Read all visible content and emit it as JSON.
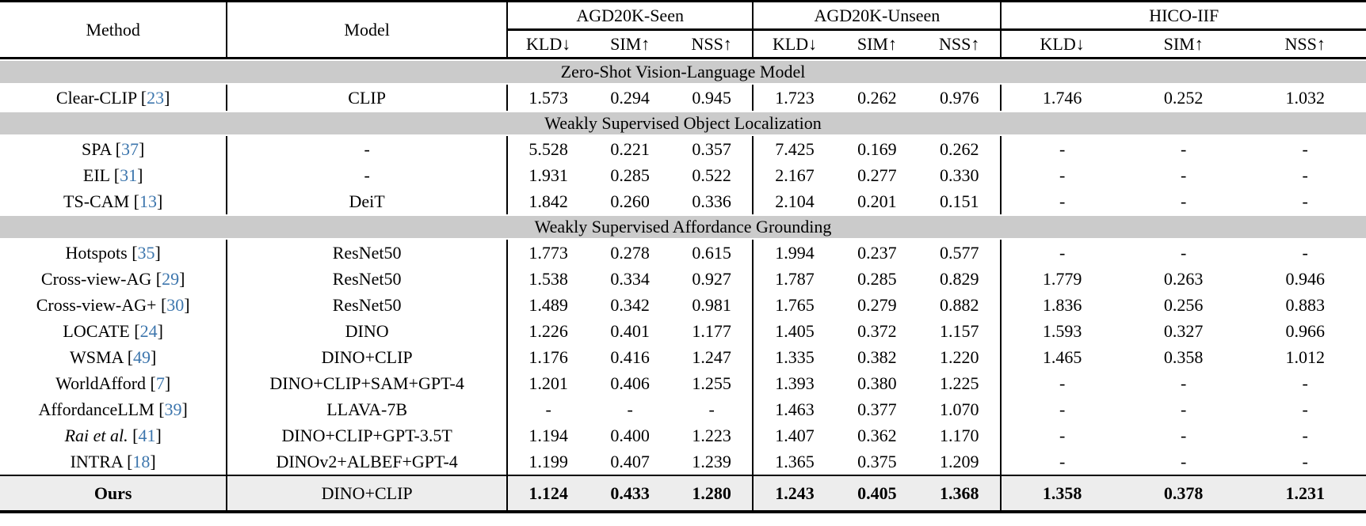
{
  "table": {
    "cite_open": "[",
    "cite_close": "]",
    "accent_color": "#3d76ad",
    "band_color": "#cbcbcb",
    "ours_row_color": "#ededed",
    "header": {
      "method": "Method",
      "model": "Model"
    },
    "groups": [
      {
        "label": "AGD20K-Seen",
        "metrics": [
          "KLD↓",
          "SIM↑",
          "NSS↑"
        ]
      },
      {
        "label": "AGD20K-Unseen",
        "metrics": [
          "KLD↓",
          "SIM↑",
          "NSS↑"
        ]
      },
      {
        "label": "HICO-IIF",
        "metrics": [
          "KLD↓",
          "SIM↑",
          "NSS↑"
        ]
      }
    ],
    "sections": [
      {
        "title": "Zero-Shot Vision-Language Model",
        "rows": [
          {
            "method": "Clear-CLIP",
            "cite": "23",
            "italic": false,
            "model": "CLIP",
            "values": [
              "1.573",
              "0.294",
              "0.945",
              "1.723",
              "0.262",
              "0.976",
              "1.746",
              "0.252",
              "1.032"
            ]
          }
        ]
      },
      {
        "title": "Weakly Supervised Object Localization",
        "rows": [
          {
            "method": "SPA",
            "cite": "37",
            "italic": false,
            "model": "-",
            "values": [
              "5.528",
              "0.221",
              "0.357",
              "7.425",
              "0.169",
              "0.262",
              "-",
              "-",
              "-"
            ]
          },
          {
            "method": "EIL",
            "cite": "31",
            "italic": false,
            "model": "-",
            "values": [
              "1.931",
              "0.285",
              "0.522",
              "2.167",
              "0.277",
              "0.330",
              "-",
              "-",
              "-"
            ]
          },
          {
            "method": "TS-CAM",
            "cite": "13",
            "italic": false,
            "model": "DeiT",
            "values": [
              "1.842",
              "0.260",
              "0.336",
              "2.104",
              "0.201",
              "0.151",
              "-",
              "-",
              "-"
            ]
          }
        ]
      },
      {
        "title": "Weakly Supervised Affordance Grounding",
        "rows": [
          {
            "method": "Hotspots",
            "cite": "35",
            "italic": false,
            "model": "ResNet50",
            "values": [
              "1.773",
              "0.278",
              "0.615",
              "1.994",
              "0.237",
              "0.577",
              "-",
              "-",
              "-"
            ]
          },
          {
            "method": "Cross-view-AG",
            "cite": "29",
            "italic": false,
            "model": "ResNet50",
            "values": [
              "1.538",
              "0.334",
              "0.927",
              "1.787",
              "0.285",
              "0.829",
              "1.779",
              "0.263",
              "0.946"
            ]
          },
          {
            "method": "Cross-view-AG+",
            "cite": "30",
            "italic": false,
            "model": "ResNet50",
            "values": [
              "1.489",
              "0.342",
              "0.981",
              "1.765",
              "0.279",
              "0.882",
              "1.836",
              "0.256",
              "0.883"
            ]
          },
          {
            "method": "LOCATE",
            "cite": "24",
            "italic": false,
            "model": "DINO",
            "values": [
              "1.226",
              "0.401",
              "1.177",
              "1.405",
              "0.372",
              "1.157",
              "1.593",
              "0.327",
              "0.966"
            ]
          },
          {
            "method": "WSMA",
            "cite": "49",
            "italic": false,
            "model": "DINO+CLIP",
            "values": [
              "1.176",
              "0.416",
              "1.247",
              "1.335",
              "0.382",
              "1.220",
              "1.465",
              "0.358",
              "1.012"
            ]
          },
          {
            "method": "WorldAfford",
            "cite": "7",
            "italic": false,
            "model": "DINO+CLIP+SAM+GPT-4",
            "values": [
              "1.201",
              "0.406",
              "1.255",
              "1.393",
              "0.380",
              "1.225",
              "-",
              "-",
              "-"
            ]
          },
          {
            "method": "AffordanceLLM",
            "cite": "39",
            "italic": false,
            "model": "LLAVA-7B",
            "values": [
              "-",
              "-",
              "-",
              "1.463",
              "0.377",
              "1.070",
              "-",
              "-",
              "-"
            ]
          },
          {
            "method": "Rai et al.",
            "cite": "41",
            "italic": true,
            "model": "DINO+CLIP+GPT-3.5T",
            "values": [
              "1.194",
              "0.400",
              "1.223",
              "1.407",
              "0.362",
              "1.170",
              "-",
              "-",
              "-"
            ]
          },
          {
            "method": "INTRA",
            "cite": "18",
            "italic": false,
            "model": "DINOv2+ALBEF+GPT-4",
            "values": [
              "1.199",
              "0.407",
              "1.239",
              "1.365",
              "0.375",
              "1.209",
              "-",
              "-",
              "-"
            ]
          }
        ]
      }
    ],
    "final_row": {
      "method": "Ours",
      "cite": "",
      "italic": false,
      "model": "DINO+CLIP",
      "values": [
        "1.124",
        "0.433",
        "1.280",
        "1.243",
        "0.405",
        "1.368",
        "1.358",
        "0.378",
        "1.231"
      ]
    }
  }
}
